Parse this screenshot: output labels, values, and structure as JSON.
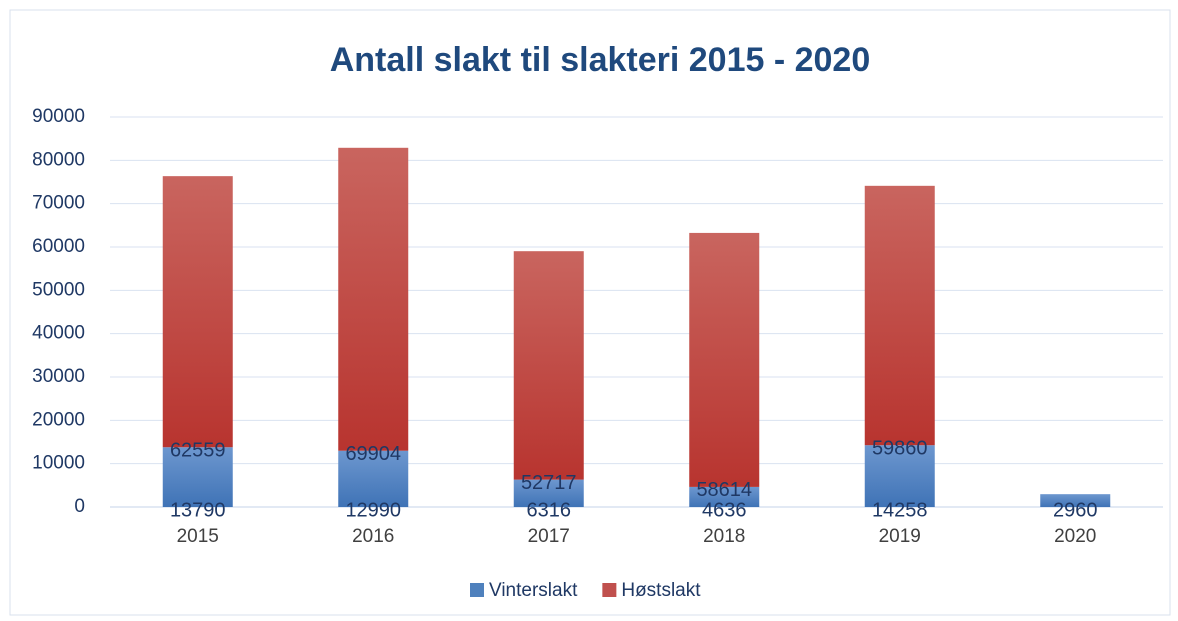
{
  "chart_data": {
    "type": "stacked-bar",
    "title": "Antall slakt til slakteri 2015 - 2020",
    "categories": [
      "2015",
      "2016",
      "2017",
      "2018",
      "2019",
      "2020"
    ],
    "series": [
      {
        "name": "Vinterslakt",
        "color": "#4f81bd",
        "values": [
          13790,
          12990,
          6316,
          4636,
          14258,
          2960
        ]
      },
      {
        "name": "Høstslakt",
        "color": "#c0504d",
        "values": [
          62559,
          69904,
          52717,
          58614,
          59860,
          null
        ]
      }
    ],
    "ylim": [
      0,
      90000
    ],
    "yticks": [
      0,
      10000,
      20000,
      30000,
      40000,
      50000,
      60000,
      70000,
      80000,
      90000
    ],
    "grid": true,
    "legend": "bottom"
  }
}
